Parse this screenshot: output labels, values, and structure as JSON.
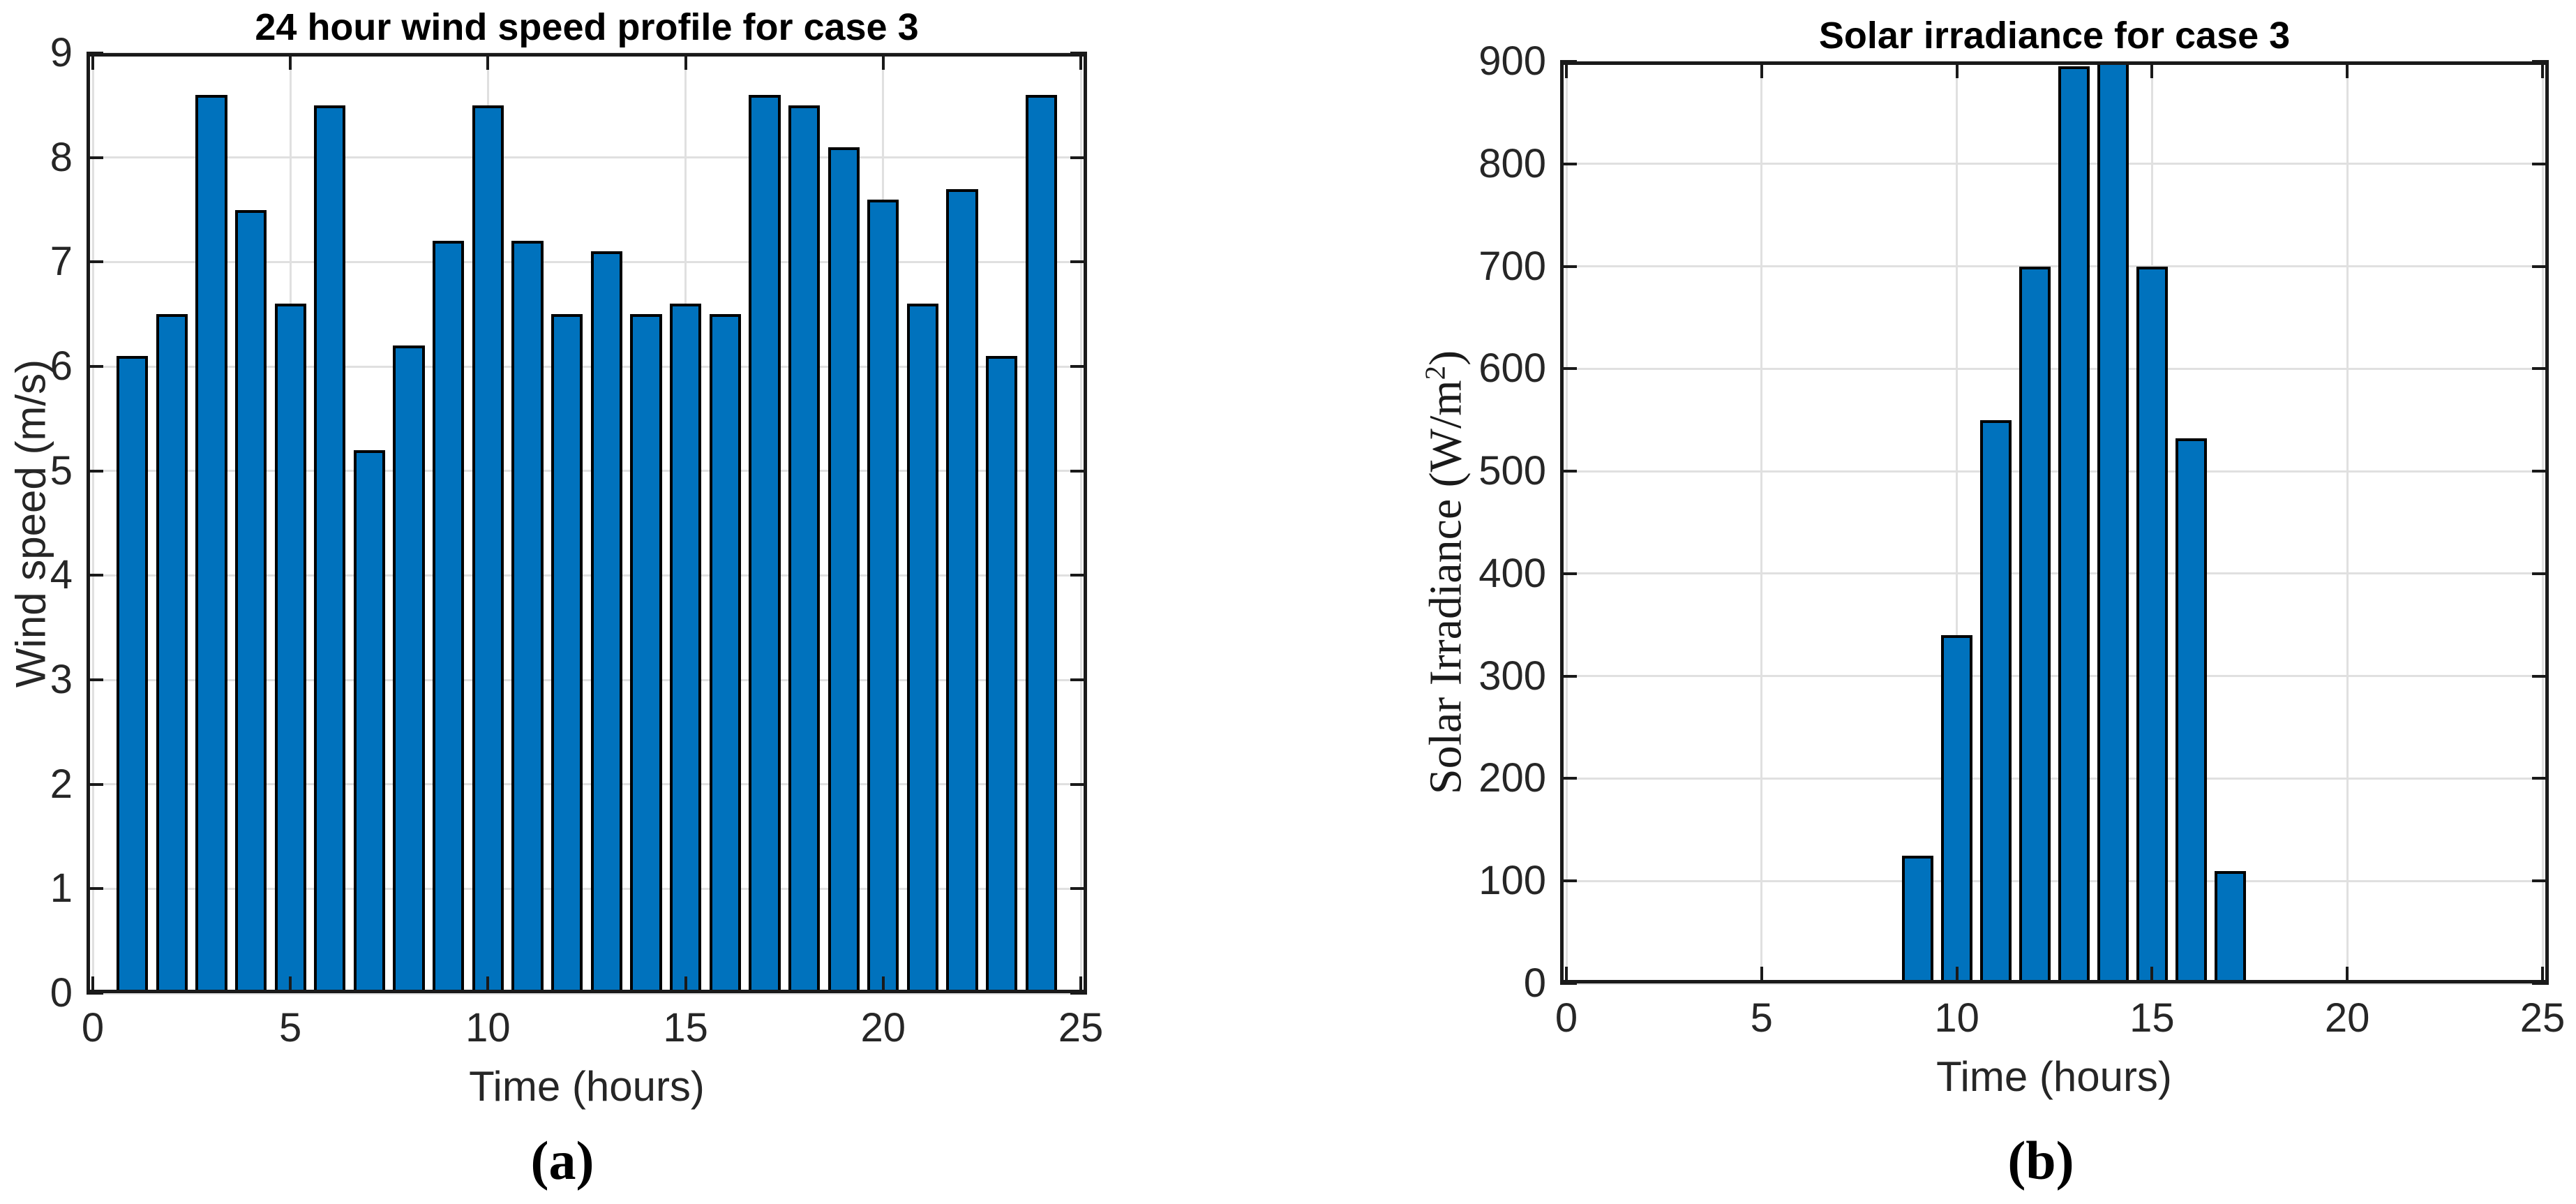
{
  "figure": {
    "background": "#ffffff",
    "grid_color": "#e0e0e0",
    "axis_color": "#1a1a1a",
    "tick_label_color": "#262626"
  },
  "chart_data": [
    {
      "id": "wind-speed",
      "type": "bar",
      "title": "24 hour wind speed profile for case 3",
      "xlabel": "Time (hours)",
      "ylabel": "Wind speed (m/s)",
      "caption": "(a)",
      "categories": [
        1,
        2,
        3,
        4,
        5,
        6,
        7,
        8,
        9,
        10,
        11,
        12,
        13,
        14,
        15,
        16,
        17,
        18,
        19,
        20,
        21,
        22,
        23,
        24
      ],
      "values": [
        6.1,
        6.5,
        8.6,
        7.5,
        6.6,
        8.5,
        5.2,
        6.2,
        7.2,
        8.5,
        7.2,
        6.5,
        7.1,
        6.5,
        6.6,
        6.5,
        8.6,
        8.5,
        8.1,
        7.6,
        6.6,
        7.7,
        6.1,
        8.6
      ],
      "xlim": [
        0,
        25
      ],
      "ylim": [
        0,
        9
      ],
      "xticks": [
        0,
        5,
        10,
        15,
        20,
        25
      ],
      "yticks": [
        0,
        1,
        2,
        3,
        4,
        5,
        6,
        7,
        8,
        9
      ],
      "bar_width": 0.8,
      "bar_color": "#0072BD",
      "bar_edge_color": "#000000",
      "grid": true,
      "legend": null
    },
    {
      "id": "solar-irradiance",
      "type": "bar",
      "title": "Solar irradiance for case 3",
      "xlabel": "Time (hours)",
      "ylabel": "Solar Irradiance (W/m²)",
      "ylabel_parts": {
        "base": "Solar Irradiance (W/m",
        "sup": "2",
        "end": ")"
      },
      "caption": "(b)",
      "categories": [
        9,
        10,
        11,
        12,
        13,
        14,
        15,
        16,
        17
      ],
      "values": [
        125,
        340,
        550,
        700,
        895,
        900,
        700,
        532,
        110
      ],
      "xlim": [
        0,
        25
      ],
      "ylim": [
        0,
        900
      ],
      "xticks": [
        0,
        5,
        10,
        15,
        20,
        25
      ],
      "yticks": [
        0,
        100,
        200,
        300,
        400,
        500,
        600,
        700,
        800,
        900
      ],
      "bar_width": 0.8,
      "bar_color": "#0072BD",
      "bar_edge_color": "#000000",
      "grid": true,
      "legend": null
    }
  ]
}
